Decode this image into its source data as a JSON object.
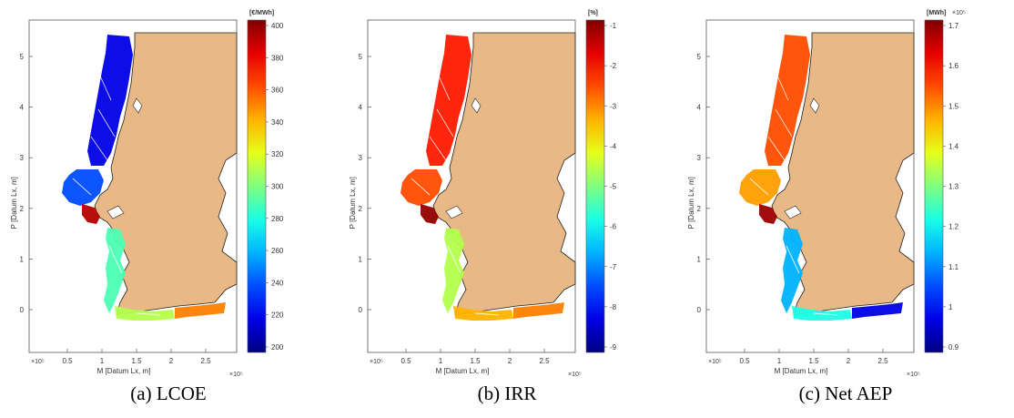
{
  "colors": {
    "land": "#e8b886",
    "axes_border": "#333333"
  },
  "panels": [
    {
      "caption": "(a) LCOE",
      "colorbar": {
        "unit": "[€/MWh]",
        "ticks": [
          "400",
          "380",
          "360",
          "340",
          "320",
          "300",
          "280",
          "260",
          "240",
          "220",
          "200"
        ],
        "range": [
          200,
          400
        ]
      },
      "ylabel": "P [Datum Lx, m]",
      "xlabel": "M [Datum Lx, m]",
      "xticks": [
        "0.5",
        "1",
        "1.5",
        "2",
        "2.5"
      ],
      "yticks": [
        "5",
        "4",
        "3",
        "2",
        "1",
        "0"
      ],
      "xexp_left": "×10⁵",
      "xexp_right": "×10⁵",
      "regions": {
        "north": 0.1,
        "west": 0.2,
        "lisbon": 0.95,
        "southwest": 0.45,
        "south": 0.55,
        "southeast": 0.75
      }
    },
    {
      "caption": "(b) IRR",
      "colorbar": {
        "unit": "[%]",
        "ticks": [
          "-1",
          "-2",
          "-3",
          "-4",
          "-5",
          "-6",
          "-7",
          "-8",
          "-9"
        ],
        "range": [
          -9.5,
          -0.5
        ]
      },
      "ylabel": "P [Datum Lx, m]",
      "xlabel": "M [Datum Lx, m]",
      "xticks": [
        "0.5",
        "1",
        "1.5",
        "2",
        "2.5"
      ],
      "yticks": [
        "5",
        "4",
        "3",
        "2",
        "1",
        "0"
      ],
      "xexp_left": "×10⁵",
      "xexp_right": "×10⁵",
      "regions": {
        "north": 0.85,
        "west": 0.8,
        "lisbon": 0.98,
        "southwest": 0.55,
        "south": 0.7,
        "southeast": 0.75
      }
    },
    {
      "caption": "(c) Net AEP",
      "colorbar": {
        "unit": "[MWh]",
        "exp": "×10⁵",
        "ticks": [
          "1.7",
          "1.6",
          "1.5",
          "1.4",
          "1.3",
          "1.2",
          "1.1",
          "1",
          "0.9"
        ],
        "range": [
          0.85,
          1.75
        ]
      },
      "ylabel": "P [Datum Lx, m]",
      "xlabel": "M [Datum Lx, m]",
      "xticks": [
        "0.5",
        "1",
        "1.5",
        "2",
        "2.5"
      ],
      "yticks": [
        "5",
        "4",
        "3",
        "2",
        "1",
        "0"
      ],
      "xexp_left": "×10⁵",
      "xexp_right": "×10⁵",
      "regions": {
        "north": 0.8,
        "west": 0.72,
        "lisbon": 0.97,
        "southwest": 0.3,
        "south": 0.4,
        "southeast": 0.1
      }
    }
  ]
}
